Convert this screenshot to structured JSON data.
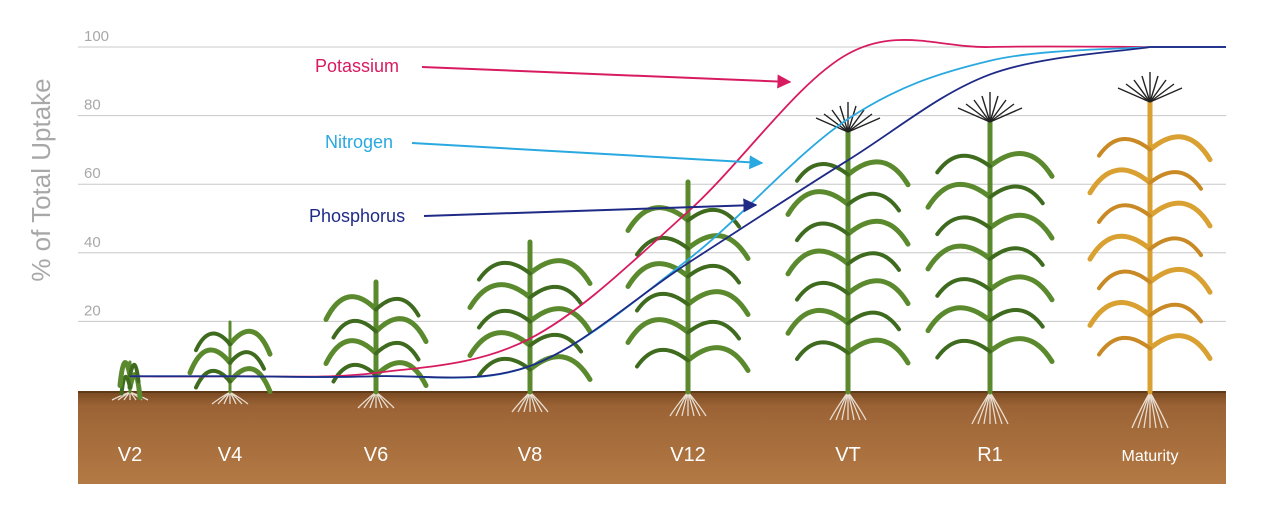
{
  "chart_data": {
    "type": "line",
    "ylabel": "% of Total Uptake",
    "ylim": [
      0,
      100
    ],
    "yticks": [
      20,
      40,
      60,
      80,
      100
    ],
    "grid": true,
    "stages": [
      "V2",
      "V4",
      "V6",
      "V8",
      "V12",
      "VT",
      "R1",
      "Maturity"
    ],
    "x": [
      "V2",
      "V4",
      "V6",
      "V8",
      "V12",
      "VT",
      "R1",
      "Maturity"
    ],
    "series": [
      {
        "name": "Potassium",
        "color": "#d81b60",
        "values": [
          4,
          4,
          5,
          15,
          52,
          98,
          100,
          100
        ]
      },
      {
        "name": "Nitrogen",
        "color": "#29a9e0",
        "values": [
          4,
          4,
          4,
          7,
          38,
          79,
          96,
          100
        ]
      },
      {
        "name": "Phosphorus",
        "color": "#1f2a86",
        "values": [
          4,
          4,
          4,
          7,
          37,
          67,
          92,
          100
        ]
      }
    ],
    "plant_colors": {
      "green": "#5b8a2e",
      "dark_green": "#3f6b1f",
      "mature": "#d9a032",
      "soil": "#8b5a2b"
    }
  }
}
